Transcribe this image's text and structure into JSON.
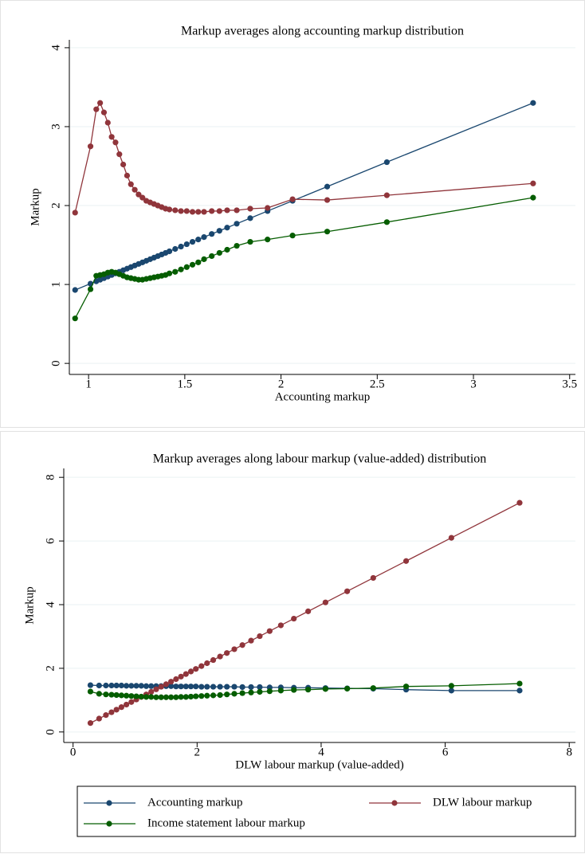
{
  "chart_data": [
    {
      "type": "line",
      "title": "Markup averages along accounting markup distribution",
      "x_label": "Accounting markup",
      "y_label": "Markup",
      "xlim": [
        0.9,
        3.53
      ],
      "xticks": [
        1,
        1.5,
        2,
        2.5,
        3,
        3.5
      ],
      "ylim": [
        -0.14,
        4.1
      ],
      "yticks": [
        0,
        1,
        2,
        3,
        4
      ],
      "grid": true,
      "x": [
        0.93,
        1.01,
        1.04,
        1.06,
        1.08,
        1.1,
        1.12,
        1.14,
        1.16,
        1.18,
        1.2,
        1.22,
        1.24,
        1.26,
        1.28,
        1.3,
        1.32,
        1.34,
        1.36,
        1.38,
        1.4,
        1.42,
        1.45,
        1.48,
        1.51,
        1.54,
        1.57,
        1.6,
        1.64,
        1.68,
        1.72,
        1.77,
        1.84,
        1.93,
        2.06,
        2.24,
        2.55,
        3.31
      ],
      "series": [
        {
          "color": "#1a476f",
          "values": [
            0.93,
            1.01,
            1.04,
            1.06,
            1.08,
            1.1,
            1.12,
            1.14,
            1.16,
            1.18,
            1.2,
            1.22,
            1.24,
            1.26,
            1.28,
            1.3,
            1.32,
            1.34,
            1.36,
            1.38,
            1.4,
            1.42,
            1.45,
            1.48,
            1.51,
            1.54,
            1.57,
            1.6,
            1.64,
            1.68,
            1.72,
            1.77,
            1.84,
            1.93,
            2.06,
            2.24,
            2.55,
            3.3
          ]
        },
        {
          "color": "#90353b",
          "values": [
            1.91,
            2.75,
            3.22,
            3.3,
            3.18,
            3.05,
            2.87,
            2.8,
            2.65,
            2.52,
            2.38,
            2.27,
            2.2,
            2.14,
            2.1,
            2.06,
            2.04,
            2.02,
            2.0,
            1.98,
            1.96,
            1.95,
            1.94,
            1.93,
            1.93,
            1.92,
            1.92,
            1.92,
            1.93,
            1.93,
            1.94,
            1.94,
            1.96,
            1.97,
            2.08,
            2.07,
            2.13,
            2.28
          ]
        },
        {
          "color": "#055d00",
          "values": [
            0.57,
            0.94,
            1.11,
            1.12,
            1.13,
            1.15,
            1.16,
            1.15,
            1.13,
            1.11,
            1.09,
            1.08,
            1.07,
            1.06,
            1.06,
            1.07,
            1.08,
            1.09,
            1.1,
            1.11,
            1.12,
            1.14,
            1.16,
            1.19,
            1.22,
            1.25,
            1.28,
            1.32,
            1.36,
            1.4,
            1.44,
            1.49,
            1.54,
            1.57,
            1.62,
            1.67,
            1.79,
            2.1
          ]
        }
      ]
    },
    {
      "type": "line",
      "title": "Markup averages along labour markup (value-added) distribution",
      "x_label": "DLW labour markup (value-added)",
      "y_label": "Markup",
      "xlim": [
        -0.15,
        8.1
      ],
      "xticks": [
        0,
        2,
        4,
        6,
        8
      ],
      "ylim": [
        -0.33,
        8.28
      ],
      "yticks": [
        0,
        2,
        4,
        6,
        8
      ],
      "grid": true,
      "x": [
        0.28,
        0.42,
        0.53,
        0.62,
        0.7,
        0.78,
        0.86,
        0.94,
        1.02,
        1.1,
        1.18,
        1.26,
        1.34,
        1.42,
        1.5,
        1.58,
        1.66,
        1.74,
        1.82,
        1.9,
        1.98,
        2.07,
        2.16,
        2.26,
        2.37,
        2.48,
        2.6,
        2.73,
        2.87,
        3.01,
        3.17,
        3.35,
        3.56,
        3.79,
        4.07,
        4.42,
        4.84,
        5.37,
        6.1,
        7.2
      ],
      "series": [
        {
          "name": "Accounting markup",
          "color": "#1a476f",
          "values": [
            1.47,
            1.46,
            1.46,
            1.46,
            1.46,
            1.46,
            1.45,
            1.45,
            1.45,
            1.45,
            1.44,
            1.44,
            1.44,
            1.44,
            1.44,
            1.44,
            1.43,
            1.43,
            1.43,
            1.43,
            1.43,
            1.42,
            1.42,
            1.42,
            1.42,
            1.42,
            1.42,
            1.41,
            1.41,
            1.41,
            1.4,
            1.4,
            1.39,
            1.39,
            1.38,
            1.37,
            1.36,
            1.33,
            1.3,
            1.3
          ]
        },
        {
          "name": "DLW labour markup",
          "color": "#90353b",
          "values": [
            0.28,
            0.42,
            0.53,
            0.62,
            0.7,
            0.78,
            0.86,
            0.94,
            1.02,
            1.1,
            1.18,
            1.26,
            1.34,
            1.42,
            1.5,
            1.58,
            1.66,
            1.74,
            1.82,
            1.9,
            1.98,
            2.07,
            2.16,
            2.26,
            2.37,
            2.48,
            2.6,
            2.73,
            2.87,
            3.01,
            3.17,
            3.35,
            3.56,
            3.79,
            4.07,
            4.42,
            4.84,
            5.37,
            6.1,
            7.2
          ]
        },
        {
          "name": "Income statement labour markup",
          "color": "#055d00",
          "values": [
            1.27,
            1.2,
            1.18,
            1.17,
            1.16,
            1.15,
            1.14,
            1.13,
            1.12,
            1.11,
            1.1,
            1.1,
            1.09,
            1.09,
            1.09,
            1.09,
            1.09,
            1.1,
            1.1,
            1.11,
            1.12,
            1.13,
            1.14,
            1.15,
            1.16,
            1.18,
            1.2,
            1.22,
            1.24,
            1.26,
            1.28,
            1.3,
            1.32,
            1.33,
            1.35,
            1.36,
            1.38,
            1.43,
            1.45,
            1.52
          ]
        }
      ]
    }
  ]
}
